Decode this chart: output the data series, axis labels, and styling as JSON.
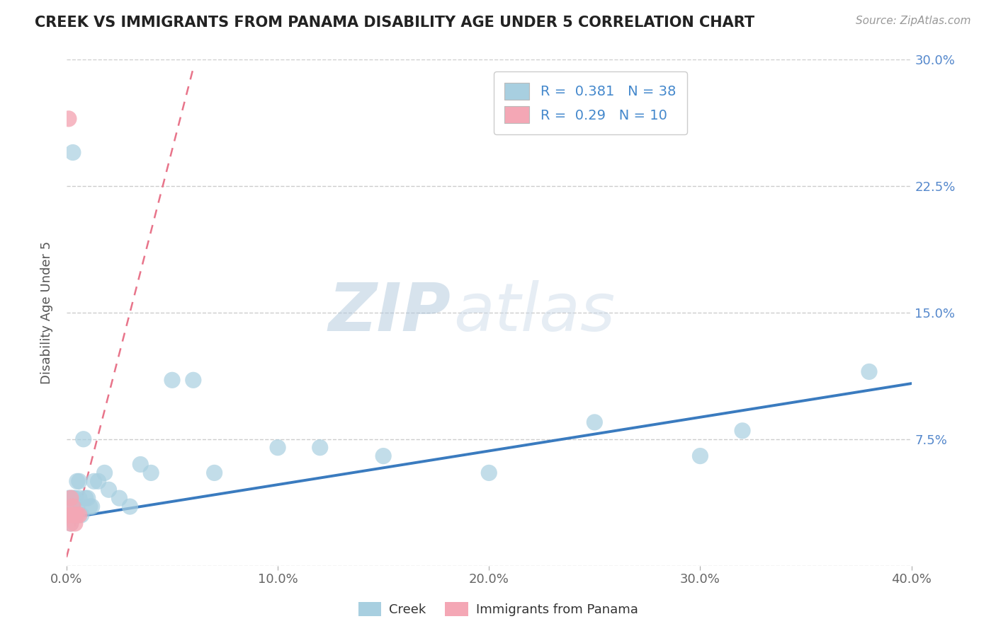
{
  "title": "CREEK VS IMMIGRANTS FROM PANAMA DISABILITY AGE UNDER 5 CORRELATION CHART",
  "source": "Source: ZipAtlas.com",
  "ylabel": "Disability Age Under 5",
  "xlim": [
    0.0,
    0.4
  ],
  "ylim": [
    0.0,
    0.3
  ],
  "xticks": [
    0.0,
    0.1,
    0.2,
    0.3,
    0.4
  ],
  "xtick_labels": [
    "0.0%",
    "10.0%",
    "20.0%",
    "30.0%",
    "40.0%"
  ],
  "yticks": [
    0.0,
    0.075,
    0.15,
    0.225,
    0.3
  ],
  "ytick_labels": [
    "",
    "7.5%",
    "15.0%",
    "22.5%",
    "30.0%"
  ],
  "creek_color": "#a8cfe0",
  "panama_color": "#f4a7b5",
  "creek_line_color": "#3a7bbf",
  "panama_line_color": "#e8748a",
  "creek_R": 0.381,
  "creek_N": 38,
  "panama_R": 0.29,
  "panama_N": 10,
  "legend_label_creek": "Creek",
  "legend_label_panama": "Immigrants from Panama",
  "watermark_zip": "ZIP",
  "watermark_atlas": "atlas",
  "grid_color": "#cccccc",
  "creek_scatter_x": [
    0.001,
    0.001,
    0.002,
    0.002,
    0.003,
    0.003,
    0.004,
    0.004,
    0.005,
    0.005,
    0.006,
    0.006,
    0.007,
    0.008,
    0.009,
    0.01,
    0.011,
    0.012,
    0.013,
    0.015,
    0.018,
    0.02,
    0.025,
    0.03,
    0.035,
    0.04,
    0.05,
    0.07,
    0.1,
    0.15,
    0.2,
    0.25,
    0.3,
    0.32,
    0.38,
    0.003,
    0.12,
    0.06
  ],
  "creek_scatter_y": [
    0.03,
    0.04,
    0.025,
    0.04,
    0.035,
    0.04,
    0.03,
    0.04,
    0.035,
    0.05,
    0.04,
    0.05,
    0.03,
    0.075,
    0.04,
    0.04,
    0.035,
    0.035,
    0.05,
    0.05,
    0.055,
    0.045,
    0.04,
    0.035,
    0.06,
    0.055,
    0.11,
    0.055,
    0.07,
    0.065,
    0.055,
    0.085,
    0.065,
    0.08,
    0.115,
    0.245,
    0.07,
    0.11
  ],
  "panama_scatter_x": [
    0.001,
    0.001,
    0.002,
    0.002,
    0.003,
    0.003,
    0.004,
    0.004,
    0.005,
    0.006
  ],
  "panama_scatter_y": [
    0.265,
    0.03,
    0.025,
    0.04,
    0.03,
    0.035,
    0.025,
    0.03,
    0.03,
    0.03
  ],
  "creek_line_x": [
    0.0,
    0.4
  ],
  "creek_line_y": [
    0.028,
    0.108
  ],
  "panama_line_x": [
    0.0,
    0.06
  ],
  "panama_line_y": [
    0.005,
    0.295
  ]
}
